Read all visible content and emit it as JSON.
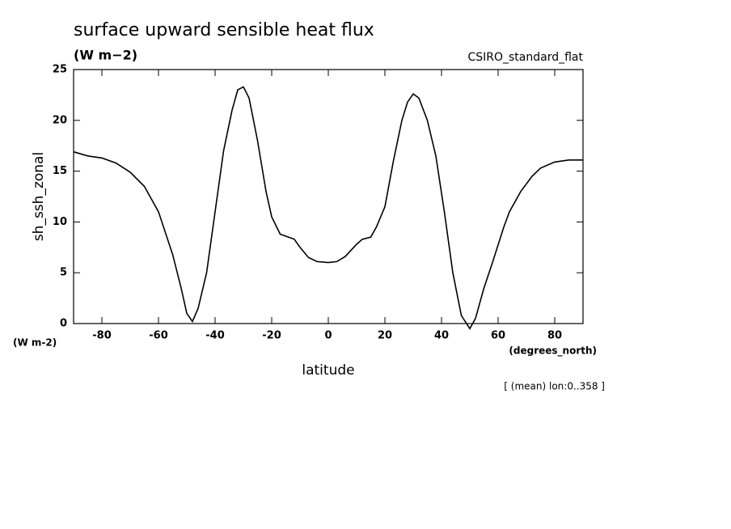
{
  "chart_data": {
    "type": "line",
    "title": "surface upward sensible heat flux",
    "subtitle": "(W m−2)",
    "dataset_label": "CSIRO_standard_flat",
    "y_label": "sh_ssh_zonal",
    "y_units": "(W m-2)",
    "x_label": "latitude",
    "x_units": "(degrees_north)",
    "annotation": "[ (mean) lon:0..358 ]",
    "x": [
      -90,
      -85,
      -80,
      -75,
      -70,
      -65,
      -60,
      -55,
      -52,
      -50,
      -48,
      -46,
      -43,
      -40,
      -37,
      -34,
      -32,
      -30,
      -28,
      -25,
      -22,
      -20,
      -17,
      -15,
      -12,
      -10,
      -7,
      -4,
      0,
      3,
      6,
      10,
      12,
      15,
      17,
      20,
      23,
      26,
      28,
      30,
      32,
      35,
      38,
      41,
      44,
      47,
      50,
      52,
      55,
      58,
      62,
      64,
      68,
      72,
      75,
      80,
      85,
      90
    ],
    "series": [
      {
        "name": "sh_ssh_zonal",
        "color": "#000000",
        "values": [
          16.9,
          16.5,
          16.3,
          15.8,
          14.9,
          13.5,
          11.0,
          6.8,
          3.5,
          1.0,
          0.2,
          1.5,
          5.0,
          11.0,
          17.0,
          21.0,
          23.0,
          23.3,
          22.2,
          18.0,
          13.0,
          10.5,
          8.8,
          8.6,
          8.3,
          7.5,
          6.5,
          6.1,
          6.0,
          6.1,
          6.6,
          7.8,
          8.3,
          8.5,
          9.5,
          11.5,
          16.0,
          20.0,
          21.8,
          22.6,
          22.2,
          20.0,
          16.5,
          11.0,
          5.0,
          0.8,
          -0.5,
          0.5,
          3.5,
          6.0,
          9.5,
          11.0,
          13.0,
          14.5,
          15.3,
          15.9,
          16.1,
          16.1
        ]
      }
    ],
    "xlim": [
      -90,
      90
    ],
    "xticks": [
      -80,
      -60,
      -40,
      -20,
      0,
      20,
      40,
      60,
      80
    ],
    "ylim": [
      0,
      25
    ],
    "yticks": [
      0,
      5,
      10,
      15,
      20,
      25
    ]
  }
}
